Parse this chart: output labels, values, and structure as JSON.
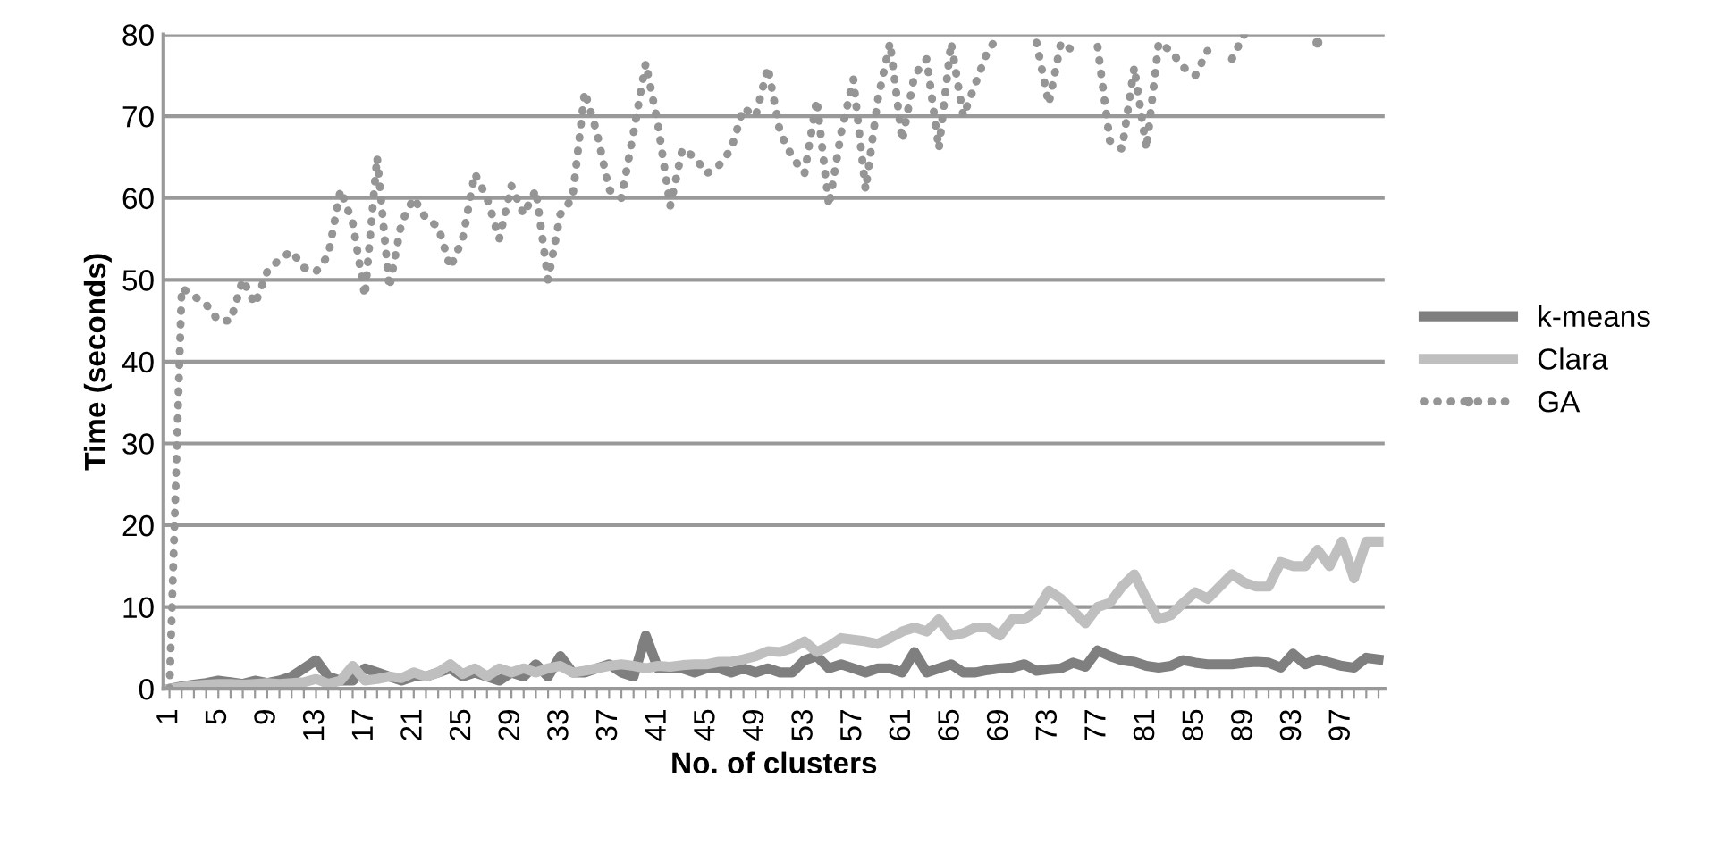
{
  "chart_data": {
    "type": "line",
    "xlabel": "No. of clusters",
    "ylabel": "Time (seconds)",
    "categories": [
      "1",
      null,
      null,
      null,
      "5",
      null,
      null,
      null,
      "9",
      null,
      null,
      null,
      "13",
      null,
      null,
      null,
      "17",
      null,
      null,
      null,
      "21",
      null,
      null,
      null,
      "25",
      null,
      null,
      null,
      "29",
      null,
      null,
      null,
      "33",
      null,
      null,
      null,
      "37",
      null,
      null,
      null,
      "41",
      null,
      null,
      null,
      "45",
      null,
      null,
      null,
      "49",
      null,
      null,
      null,
      "53",
      null,
      null,
      null,
      "57",
      null,
      null,
      null,
      "61",
      null,
      null,
      null,
      "65",
      null,
      null,
      null,
      "69",
      null,
      null,
      null,
      "73",
      null,
      null,
      null,
      "77",
      null,
      null,
      null,
      "81",
      null,
      null,
      null,
      "85",
      null,
      null,
      null,
      "89",
      null,
      null,
      null,
      "93",
      null,
      null,
      null,
      "97",
      null,
      null,
      null
    ],
    "series": [
      {
        "name": "k-means",
        "color": "#7f7f7f",
        "line_style": "solid",
        "values": [
          0,
          0.3,
          0.5,
          0.7,
          1,
          0.8,
          0.6,
          1,
          0.7,
          1,
          1.5,
          2.5,
          3.5,
          1.5,
          1,
          1,
          2.5,
          2,
          1.5,
          1,
          1.5,
          1.5,
          2,
          2.5,
          1.5,
          2,
          1.5,
          1,
          2,
          1.5,
          3,
          1.5,
          4,
          2,
          2,
          2.5,
          3,
          2,
          1.5,
          6.5,
          2.5,
          2.5,
          2.5,
          2,
          2.5,
          2.5,
          2,
          2.5,
          2,
          2.5,
          2,
          2,
          3.5,
          4,
          2.5,
          3,
          2.5,
          2,
          2.5,
          2.5,
          2,
          4.5,
          2,
          2.5,
          3,
          2,
          2,
          2.3,
          2.5,
          2.6,
          3,
          2.2,
          2.4,
          2.5,
          3.2,
          2.7,
          4.7,
          4,
          3.5,
          3.3,
          2.8,
          2.6,
          2.8,
          3.5,
          3.2,
          3,
          3,
          3,
          3.2,
          3.3,
          3.2,
          2.6,
          4.3,
          3,
          3.6,
          3.2,
          2.8,
          2.6,
          3.8,
          3.6
        ]
      },
      {
        "name": "Clara",
        "color": "#bfbfbf",
        "line_style": "solid",
        "values": [
          0,
          0.2,
          0.4,
          0.5,
          0.6,
          0.6,
          0.5,
          0.6,
          0.7,
          0.6,
          0.7,
          0.8,
          1.2,
          0.6,
          1,
          2.8,
          1,
          1.2,
          1.5,
          1.3,
          2,
          1.5,
          2,
          3,
          1.8,
          2.5,
          1.5,
          2.5,
          2,
          2.5,
          2,
          2.5,
          2.8,
          2,
          2.2,
          2.5,
          2.8,
          3,
          2.8,
          2.5,
          2.8,
          2.7,
          2.9,
          3,
          3,
          3.3,
          3.3,
          3.6,
          4,
          4.6,
          4.5,
          5,
          5.8,
          4.5,
          5.2,
          6.2,
          6,
          5.8,
          5.5,
          6.2,
          7,
          7.5,
          7,
          8.5,
          6.5,
          6.8,
          7.5,
          7.5,
          6.5,
          8.5,
          8.5,
          9.5,
          12,
          11,
          9.5,
          8,
          10,
          10.5,
          12.5,
          14,
          11,
          8.5,
          9,
          10.5,
          11.8,
          11,
          12.5,
          14,
          13,
          12.5,
          12.5,
          15.5,
          15,
          15,
          17,
          15,
          18,
          13.5,
          18,
          18
        ]
      },
      {
        "name": "GA",
        "color": "#959595",
        "line_style": "dotted",
        "values": [
          0,
          49,
          48,
          47,
          45,
          45,
          50,
          47,
          51,
          52.5,
          53.5,
          51.5,
          51,
          53,
          61,
          57,
          48,
          65,
          49,
          57,
          60,
          57.5,
          56.5,
          51.5,
          55,
          63,
          60,
          55,
          61.5,
          58,
          61,
          50,
          58,
          60,
          73,
          68,
          61,
          60,
          68,
          76.5,
          69,
          59,
          66,
          65,
          63,
          64,
          66,
          71,
          70,
          76,
          68,
          65,
          63,
          72,
          59,
          68,
          74.5,
          61,
          72,
          79,
          67,
          75,
          77,
          66,
          79,
          70,
          74,
          78,
          80,
          null,
          null,
          79,
          71.5,
          79,
          78,
          null,
          78.5,
          67,
          66,
          76,
          66,
          79,
          78,
          76,
          75,
          78,
          null,
          77,
          80,
          null,
          null,
          null,
          null,
          null,
          79,
          null,
          null,
          null,
          null,
          null
        ]
      }
    ],
    "ylim": [
      0,
      80
    ],
    "yticks": [
      0,
      10,
      20,
      30,
      40,
      50,
      60,
      70,
      80
    ],
    "grid": "y",
    "legend": "right",
    "marker": "none"
  }
}
